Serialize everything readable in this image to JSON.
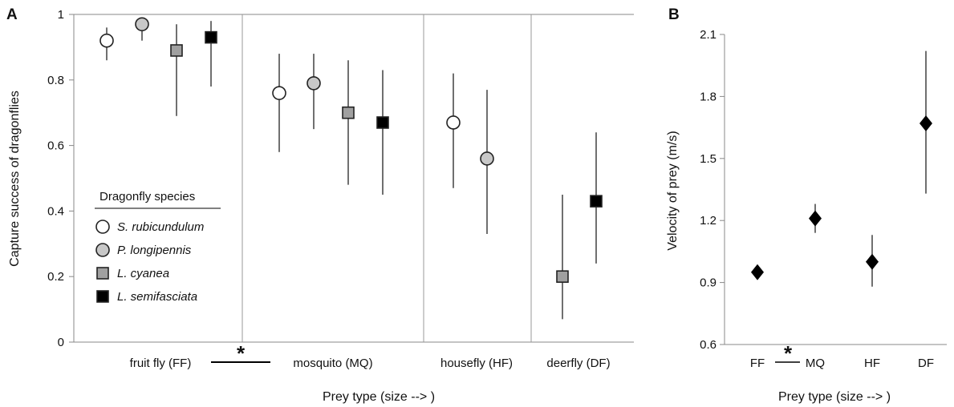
{
  "chart_data": [
    {
      "panel": "A",
      "type": "scatter",
      "ylabel": "Capture success of dragonflies",
      "xlabel": "Prey type (size --> )",
      "ylim": [
        0,
        1
      ],
      "yticks": [
        "0",
        "0.2",
        "0.4",
        "0.6",
        "0.8",
        "1"
      ],
      "categories": [
        "fruit fly (FF)",
        "mosquito (MQ)",
        "housefly (HF)",
        "deerfly (DF)"
      ],
      "significance_marker": "*",
      "legend": {
        "title": "Dragonfly species",
        "placement": "bottom-left",
        "entries": [
          {
            "name": "S. rubicundulum",
            "marker": "circle",
            "fill": "#ffffff"
          },
          {
            "name": "P. longipennis",
            "marker": "circle",
            "fill": "#c8c8c8"
          },
          {
            "name": "L. cyanea",
            "marker": "square",
            "fill": "#a0a0a0"
          },
          {
            "name": "L. semifasciata",
            "marker": "square",
            "fill": "#000000"
          }
        ]
      },
      "series": [
        {
          "name": "S. rubicundulum",
          "points": [
            {
              "category": "fruit fly (FF)",
              "y": 0.92,
              "ci": [
                0.86,
                0.96
              ]
            },
            {
              "category": "mosquito (MQ)",
              "y": 0.76,
              "ci": [
                0.58,
                0.88
              ]
            },
            {
              "category": "housefly (HF)",
              "y": 0.67,
              "ci": [
                0.47,
                0.82
              ]
            }
          ]
        },
        {
          "name": "P. longipennis",
          "points": [
            {
              "category": "fruit fly (FF)",
              "y": 0.97,
              "ci": [
                0.92,
                0.99
              ]
            },
            {
              "category": "mosquito (MQ)",
              "y": 0.79,
              "ci": [
                0.65,
                0.88
              ]
            },
            {
              "category": "housefly (HF)",
              "y": 0.56,
              "ci": [
                0.33,
                0.77
              ]
            }
          ]
        },
        {
          "name": "L. cyanea",
          "points": [
            {
              "category": "fruit fly (FF)",
              "y": 0.89,
              "ci": [
                0.69,
                0.97
              ]
            },
            {
              "category": "mosquito (MQ)",
              "y": 0.7,
              "ci": [
                0.48,
                0.86
              ]
            },
            {
              "category": "deerfly (DF)",
              "y": 0.2,
              "ci": [
                0.07,
                0.45
              ]
            }
          ]
        },
        {
          "name": "L. semifasciata",
          "points": [
            {
              "category": "fruit fly (FF)",
              "y": 0.93,
              "ci": [
                0.78,
                0.98
              ]
            },
            {
              "category": "mosquito (MQ)",
              "y": 0.67,
              "ci": [
                0.45,
                0.83
              ]
            },
            {
              "category": "deerfly (DF)",
              "y": 0.43,
              "ci": [
                0.24,
                0.64
              ]
            }
          ]
        }
      ]
    },
    {
      "panel": "B",
      "type": "scatter",
      "ylabel": "Velocity of prey (m/s)",
      "xlabel": "Prey type (size --> )",
      "ylim": [
        0.6,
        2.1
      ],
      "yticks": [
        "0.6",
        "0.9",
        "1.2",
        "1.5",
        "1.8",
        "2.1"
      ],
      "categories": [
        "FF",
        "MQ",
        "HF",
        "DF"
      ],
      "significance_marker": "*",
      "marker": "diamond",
      "points": [
        {
          "category": "FF",
          "y": 0.95,
          "ci": [
            0.95,
            0.95
          ]
        },
        {
          "category": "MQ",
          "y": 1.21,
          "ci": [
            1.14,
            1.28
          ]
        },
        {
          "category": "HF",
          "y": 1.0,
          "ci": [
            0.88,
            1.13
          ]
        },
        {
          "category": "DF",
          "y": 1.67,
          "ci": [
            1.33,
            2.02
          ]
        }
      ]
    }
  ]
}
